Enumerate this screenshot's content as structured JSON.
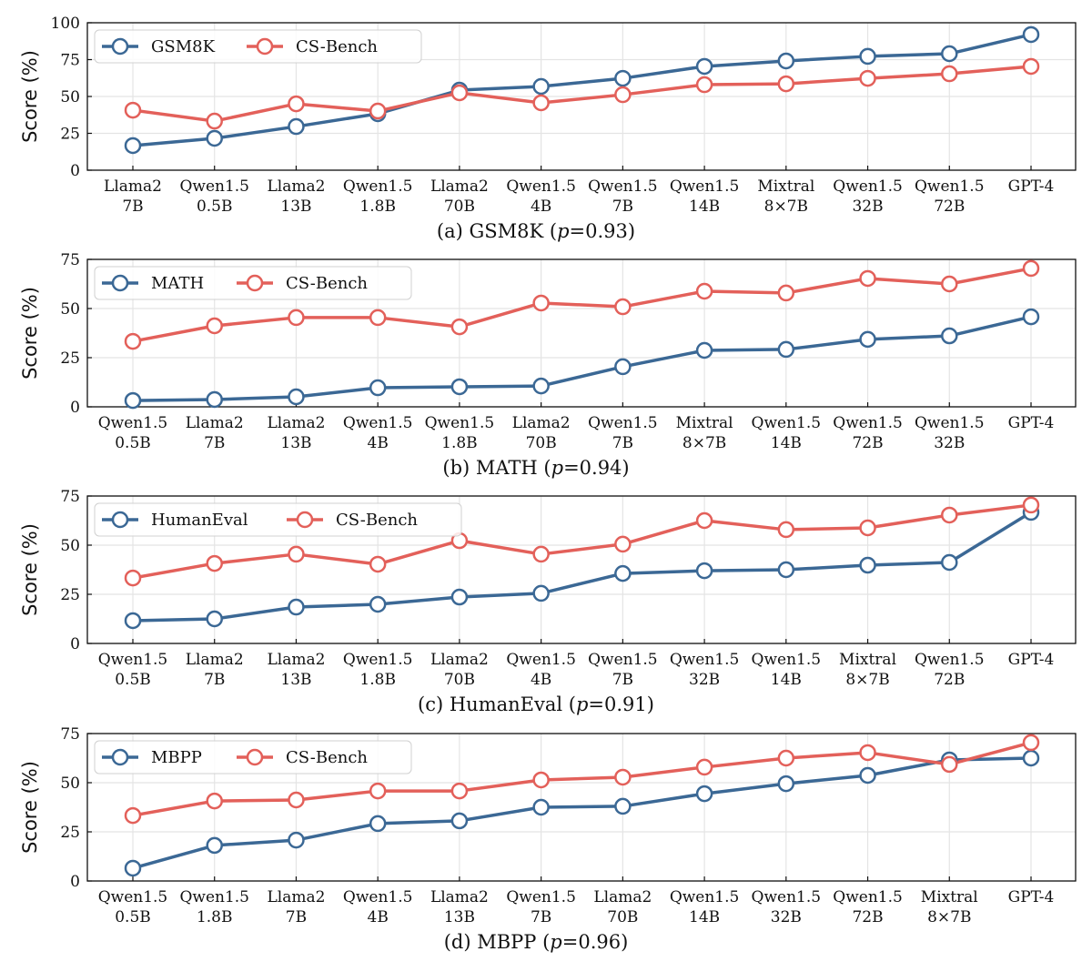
{
  "colors": {
    "primary": "#3b6895",
    "csbench": "#e3605a",
    "grid": "#e4e4e4"
  },
  "chart_data": [
    {
      "type": "line",
      "caption_pre": "(a) GSM8K (",
      "caption_var": "p",
      "caption_post": "=0.93)",
      "ylabel": "Score (%)",
      "ylim": [
        0,
        100
      ],
      "yticks": [
        0,
        25,
        50,
        75,
        100
      ],
      "legend_position": "top-left",
      "grid": true,
      "categories": [
        [
          "Llama2",
          "7B"
        ],
        [
          "Qwen1.5",
          "0.5B"
        ],
        [
          "Llama2",
          "13B"
        ],
        [
          "Qwen1.5",
          "1.8B"
        ],
        [
          "Llama2",
          "70B"
        ],
        [
          "Qwen1.5",
          "4B"
        ],
        [
          "Qwen1.5",
          "7B"
        ],
        [
          "Qwen1.5",
          "14B"
        ],
        [
          "Mixtral",
          "8×7B"
        ],
        [
          "Qwen1.5",
          "32B"
        ],
        [
          "Qwen1.5",
          "72B"
        ],
        [
          "GPT-4",
          ""
        ]
      ],
      "series": [
        {
          "name": "GSM8K",
          "values": [
            16.7,
            21.6,
            29.6,
            38.3,
            54.3,
            56.8,
            62.3,
            70.4,
            74.1,
            77.2,
            79.0,
            92.0
          ]
        },
        {
          "name": "CS-Bench",
          "values": [
            40.7,
            33.3,
            45.0,
            40.1,
            52.5,
            45.7,
            51.2,
            58.0,
            58.6,
            62.3,
            65.4,
            70.4
          ]
        }
      ]
    },
    {
      "type": "line",
      "caption_pre": "(b) MATH (",
      "caption_var": "p",
      "caption_post": "=0.94)",
      "ylabel": "Score (%)",
      "ylim": [
        0,
        75
      ],
      "yticks": [
        0,
        25,
        50,
        75
      ],
      "legend_position": "top-left",
      "grid": true,
      "categories": [
        [
          "Qwen1.5",
          "0.5B"
        ],
        [
          "Llama2",
          "7B"
        ],
        [
          "Llama2",
          "13B"
        ],
        [
          "Qwen1.5",
          "4B"
        ],
        [
          "Qwen1.5",
          "1.8B"
        ],
        [
          "Llama2",
          "70B"
        ],
        [
          "Qwen1.5",
          "7B"
        ],
        [
          "Mixtral",
          "8×7B"
        ],
        [
          "Qwen1.5",
          "14B"
        ],
        [
          "Qwen1.5",
          "72B"
        ],
        [
          "Qwen1.5",
          "32B"
        ],
        [
          "GPT-4",
          ""
        ]
      ],
      "series": [
        {
          "name": "MATH",
          "values": [
            3.2,
            3.7,
            5.1,
            9.7,
            10.2,
            10.6,
            20.4,
            28.7,
            29.2,
            34.3,
            36.1,
            45.8
          ]
        },
        {
          "name": "CS-Bench",
          "values": [
            33.3,
            41.2,
            45.4,
            45.4,
            40.7,
            52.8,
            50.9,
            58.8,
            57.9,
            65.3,
            62.5,
            70.4
          ]
        }
      ]
    },
    {
      "type": "line",
      "caption_pre": "(c) HumanEval (",
      "caption_var": "p",
      "caption_post": "=0.91)",
      "ylabel": "Score (%)",
      "ylim": [
        0,
        75
      ],
      "yticks": [
        0,
        25,
        50,
        75
      ],
      "legend_position": "top-left",
      "grid": true,
      "categories": [
        [
          "Qwen1.5",
          "0.5B"
        ],
        [
          "Llama2",
          "7B"
        ],
        [
          "Llama2",
          "13B"
        ],
        [
          "Qwen1.5",
          "1.8B"
        ],
        [
          "Llama2",
          "70B"
        ],
        [
          "Qwen1.5",
          "4B"
        ],
        [
          "Qwen1.5",
          "7B"
        ],
        [
          "Qwen1.5",
          "32B"
        ],
        [
          "Qwen1.5",
          "14B"
        ],
        [
          "Mixtral",
          "8×7B"
        ],
        [
          "Qwen1.5",
          "72B"
        ],
        [
          "GPT-4",
          ""
        ]
      ],
      "series": [
        {
          "name": "HumanEval",
          "values": [
            11.6,
            12.5,
            18.5,
            19.9,
            23.6,
            25.5,
            35.6,
            37.0,
            37.5,
            39.8,
            41.2,
            66.7
          ]
        },
        {
          "name": "CS-Bench",
          "values": [
            33.3,
            40.7,
            45.4,
            40.3,
            52.3,
            45.4,
            50.5,
            62.5,
            57.9,
            58.8,
            65.3,
            70.4
          ]
        }
      ]
    },
    {
      "type": "line",
      "caption_pre": "(d) MBPP (",
      "caption_var": "p",
      "caption_post": "=0.96)",
      "ylabel": "Score (%)",
      "ylim": [
        0,
        75
      ],
      "yticks": [
        0,
        25,
        50,
        75
      ],
      "legend_position": "top-left",
      "grid": true,
      "categories": [
        [
          "Qwen1.5",
          "0.5B"
        ],
        [
          "Qwen1.5",
          "1.8B"
        ],
        [
          "Llama2",
          "7B"
        ],
        [
          "Qwen1.5",
          "4B"
        ],
        [
          "Llama2",
          "13B"
        ],
        [
          "Qwen1.5",
          "7B"
        ],
        [
          "Llama2",
          "70B"
        ],
        [
          "Qwen1.5",
          "14B"
        ],
        [
          "Qwen1.5",
          "32B"
        ],
        [
          "Qwen1.5",
          "72B"
        ],
        [
          "Mixtral",
          "8×7B"
        ],
        [
          "GPT-4",
          ""
        ]
      ],
      "series": [
        {
          "name": "MBPP",
          "values": [
            6.5,
            18.1,
            20.8,
            29.2,
            30.6,
            37.5,
            38.0,
            44.4,
            49.5,
            53.7,
            61.6,
            62.5
          ]
        },
        {
          "name": "CS-Bench",
          "values": [
            33.3,
            40.7,
            41.2,
            45.8,
            45.8,
            51.4,
            52.8,
            57.9,
            62.5,
            65.3,
            59.3,
            70.4
          ]
        }
      ]
    }
  ]
}
